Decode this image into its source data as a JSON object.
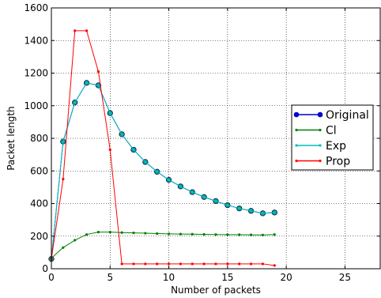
{
  "chart_data": {
    "type": "line",
    "title": "",
    "xlabel": "Number of packets",
    "ylabel": "Packet length",
    "xlim": [
      0,
      28
    ],
    "ylim": [
      0,
      1600
    ],
    "xticks": [
      0,
      5,
      10,
      15,
      20,
      25
    ],
    "yticks": [
      0,
      200,
      400,
      600,
      800,
      1000,
      1200,
      1400,
      1600
    ],
    "grid": true,
    "legend_position": "right",
    "series": [
      {
        "name": "Original",
        "color": "#0000cc",
        "marker": "circle",
        "x": [
          0,
          1,
          2,
          3,
          4,
          5,
          6,
          7,
          8,
          9,
          10,
          11,
          12,
          13,
          14,
          15,
          16,
          17,
          18,
          19
        ],
        "values": [
          60,
          780,
          1020,
          1140,
          1125,
          955,
          825,
          730,
          655,
          595,
          545,
          505,
          470,
          440,
          415,
          390,
          370,
          355,
          340,
          345
        ]
      },
      {
        "name": "Cl",
        "color": "#008000",
        "marker": "dot",
        "x": [
          0,
          1,
          2,
          3,
          4,
          5,
          6,
          7,
          8,
          9,
          10,
          11,
          12,
          13,
          14,
          15,
          16,
          17,
          18,
          19
        ],
        "values": [
          65,
          130,
          175,
          210,
          225,
          225,
          222,
          220,
          218,
          216,
          214,
          213,
          212,
          211,
          210,
          209,
          209,
          208,
          207,
          210
        ]
      },
      {
        "name": "Exp",
        "color": "#00bfbf",
        "marker": "dot",
        "x": [
          0,
          1,
          2,
          3,
          4,
          5,
          6,
          7,
          8,
          9,
          10,
          11,
          12,
          13,
          14,
          15,
          16,
          17,
          18,
          19
        ],
        "values": [
          60,
          780,
          1020,
          1140,
          1125,
          955,
          825,
          730,
          655,
          595,
          545,
          505,
          470,
          440,
          415,
          390,
          370,
          355,
          340,
          345
        ]
      },
      {
        "name": "Prop",
        "color": "#ff0000",
        "marker": "dot",
        "x": [
          0,
          1,
          2,
          3,
          4,
          5,
          6,
          7,
          8,
          9,
          10,
          11,
          12,
          13,
          14,
          15,
          16,
          17,
          18,
          19
        ],
        "values": [
          60,
          550,
          1460,
          1460,
          1210,
          730,
          30,
          30,
          30,
          30,
          30,
          30,
          30,
          30,
          30,
          30,
          30,
          30,
          30,
          20
        ]
      }
    ]
  }
}
